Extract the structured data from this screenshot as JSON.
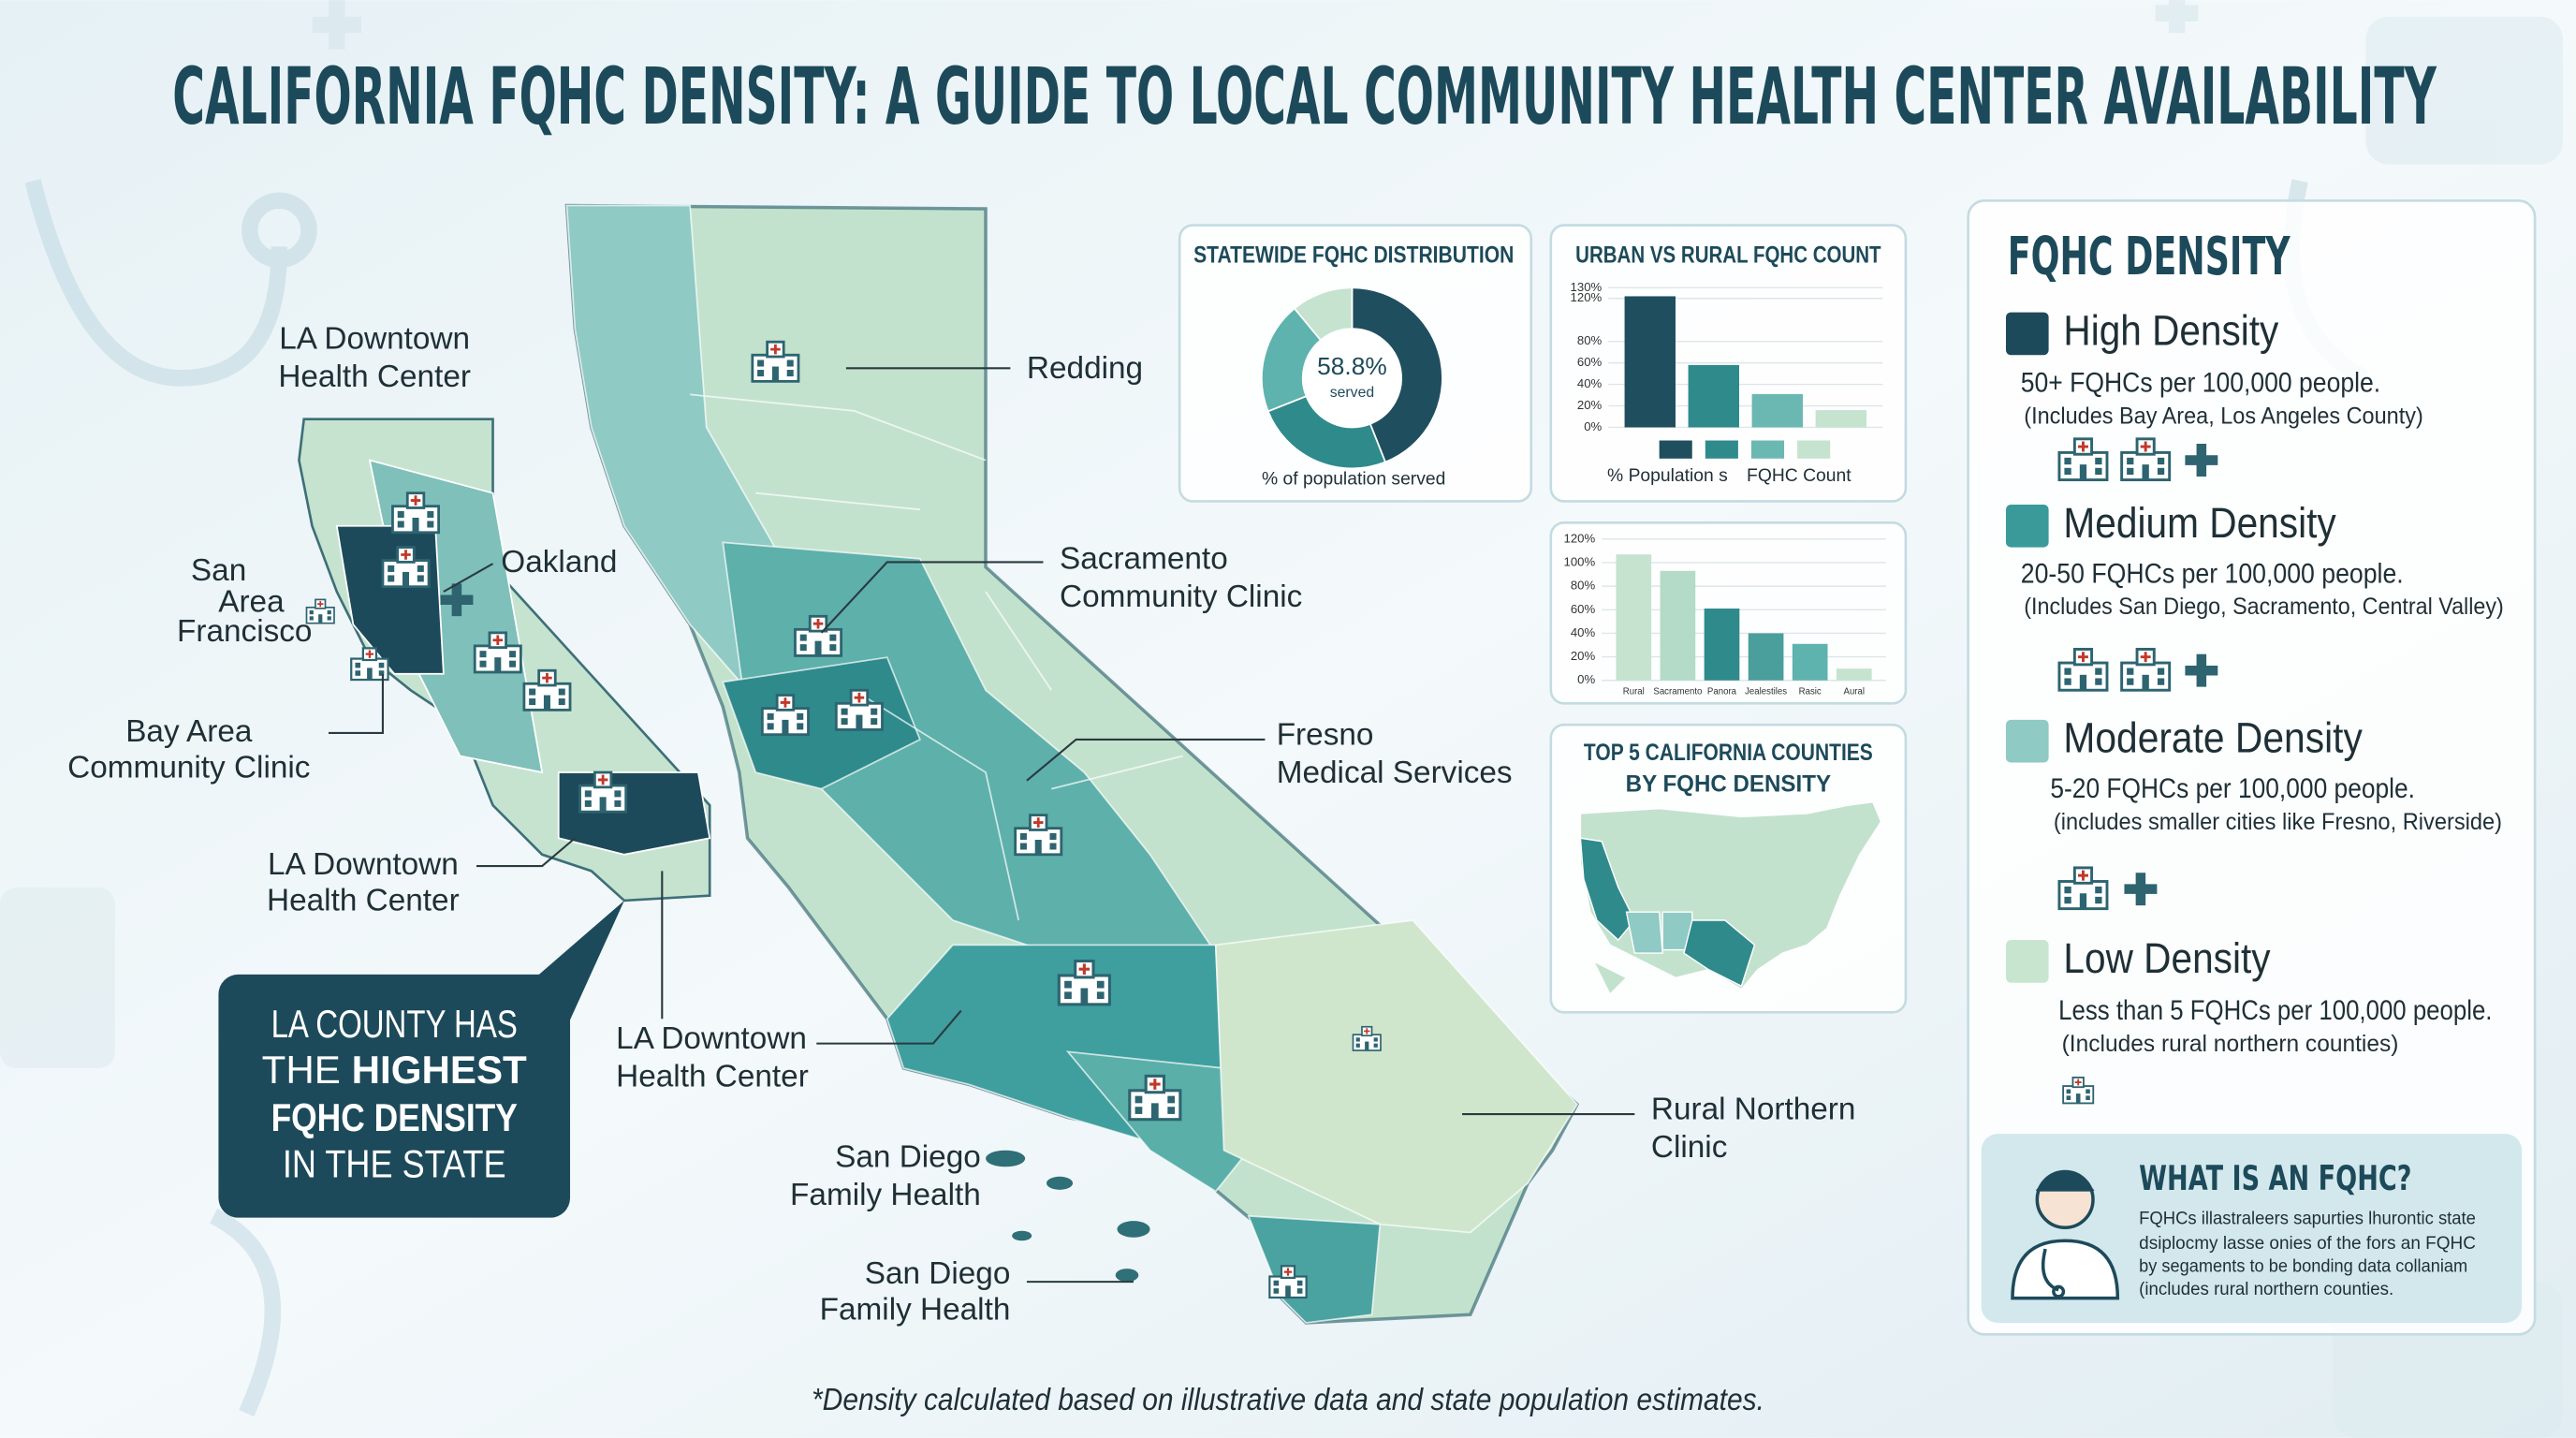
{
  "title": "CALIFORNIA FQHC DENSITY: A GUIDE TO LOCAL COMMUNITY HEALTH CENTER AVAILABILITY",
  "map_labels": [
    {
      "lines": [
        "LA Downtown",
        "Health Center"
      ]
    },
    {
      "lines": [
        "San",
        "Area",
        "Francisco"
      ]
    },
    {
      "lines": [
        "Oakland"
      ]
    },
    {
      "lines": [
        "Bay Area",
        "Community Clinic"
      ]
    },
    {
      "lines": [
        "LA Downtown",
        "Health Center"
      ]
    },
    {
      "lines": [
        "LA Downtown",
        "Health Center"
      ]
    },
    {
      "lines": [
        "San Diego",
        "Family Health"
      ]
    },
    {
      "lines": [
        "San Diego",
        "Family Health"
      ]
    },
    {
      "lines": [
        "Redding"
      ]
    },
    {
      "lines": [
        "Sacramento",
        "Community Clinic"
      ]
    },
    {
      "lines": [
        "Fresno",
        "Medical Services"
      ]
    },
    {
      "lines": [
        "Rural Northern",
        "Clinic"
      ]
    }
  ],
  "callout": {
    "lines": [
      "LA COUNTY HAS",
      "THE",
      "HIGHEST",
      "FQHC DENSITY",
      "IN THE STATE"
    ]
  },
  "chart_data": [
    {
      "type": "pie",
      "title": "STATEWIDE FQHC DISTRIBUTION",
      "center_label": "58.8%",
      "center_sublabel": "served",
      "caption": "% of population served",
      "values": [
        44,
        25,
        20,
        11
      ],
      "colors": [
        "#1f4e5f",
        "#2f8a8c",
        "#5fb3ae",
        "#c5e3cf"
      ]
    },
    {
      "type": "bar",
      "title": "URBAN VS RURAL FQHC COUNT",
      "categories": [
        null,
        null,
        null,
        null
      ],
      "values": [
        122,
        58,
        31,
        16
      ],
      "colors": [
        "#1f4e5f",
        "#2f8a8c",
        "#6bb8b2",
        "#c5e3cf"
      ],
      "ylim": [
        0,
        130
      ],
      "yticks": [
        {
          "value": 0,
          "label": "0%"
        },
        {
          "value": 20,
          "label": "20%"
        },
        {
          "value": 40,
          "label": "40%"
        },
        {
          "value": 60,
          "label": "60%"
        },
        {
          "value": 80,
          "label": "80%"
        },
        {
          "value": 120,
          "label": "120%"
        },
        {
          "value": 130,
          "label": "130%"
        }
      ],
      "grid": true,
      "legend": [
        "% Population s",
        "FQHC Count"
      ]
    },
    {
      "type": "bar",
      "categories": [
        "Rural",
        "Sacramento",
        "Panora",
        "Jealestiles",
        "Rasic",
        "Aural"
      ],
      "values": [
        107,
        93,
        61,
        40,
        31,
        10
      ],
      "colors": [
        "#c5e3cf",
        "#b3dbc8",
        "#2f8a8c",
        "#4a9e9c",
        "#5fb3ae",
        "#c5e3cf"
      ],
      "ylim": [
        0,
        120
      ],
      "yticks": [
        {
          "value": 0,
          "label": "0%"
        },
        {
          "value": 20,
          "label": "20%"
        },
        {
          "value": 40,
          "label": "40%"
        },
        {
          "value": 60,
          "label": "60%"
        },
        {
          "value": 80,
          "label": "80%"
        },
        {
          "value": 100,
          "label": "100%"
        },
        {
          "value": 120,
          "label": "120%"
        }
      ],
      "grid": true
    },
    {
      "type": "map",
      "title": [
        "TOP 5 CALIFORNIA COUNTIES",
        "BY FQHC DENSITY"
      ]
    }
  ],
  "legend": {
    "title": "FQHC DENSITY",
    "items": [
      {
        "title": "High Density",
        "color": "#1d4a5a",
        "desc": "50+ FQHCs per 100,000 people.",
        "note": "(Includes Bay Area, Los Angeles County)"
      },
      {
        "title": "Medium Density",
        "color": "#3a9a9a",
        "desc": "20-50 FQHCs per 100,000 people.",
        "note": "(Includes San Diego, Sacramento, Central Valley)"
      },
      {
        "title": "Moderate Density",
        "color": "#8fcac4",
        "desc": "5-20 FQHCs per 100,000 people.",
        "note": "(includes smaller cities like Fresno, Riverside)"
      },
      {
        "title": "Low Density",
        "color": "#c8e6cf",
        "desc": "Less than 5 FQHCs per 100,000 people.",
        "note": "(Includes rural northern counties)"
      }
    ]
  },
  "info": {
    "title": "WHAT IS AN FQHC?",
    "lines": [
      "FQHCs illastraleers sapurties lhurontic state",
      "dsiplocmy lasse onies of the fors an FQHC",
      "by segaments to be bonding data collaniam",
      "(includes rural northern counties."
    ]
  },
  "footnote": "*Density calculated based on illustrative data and state population estimates."
}
